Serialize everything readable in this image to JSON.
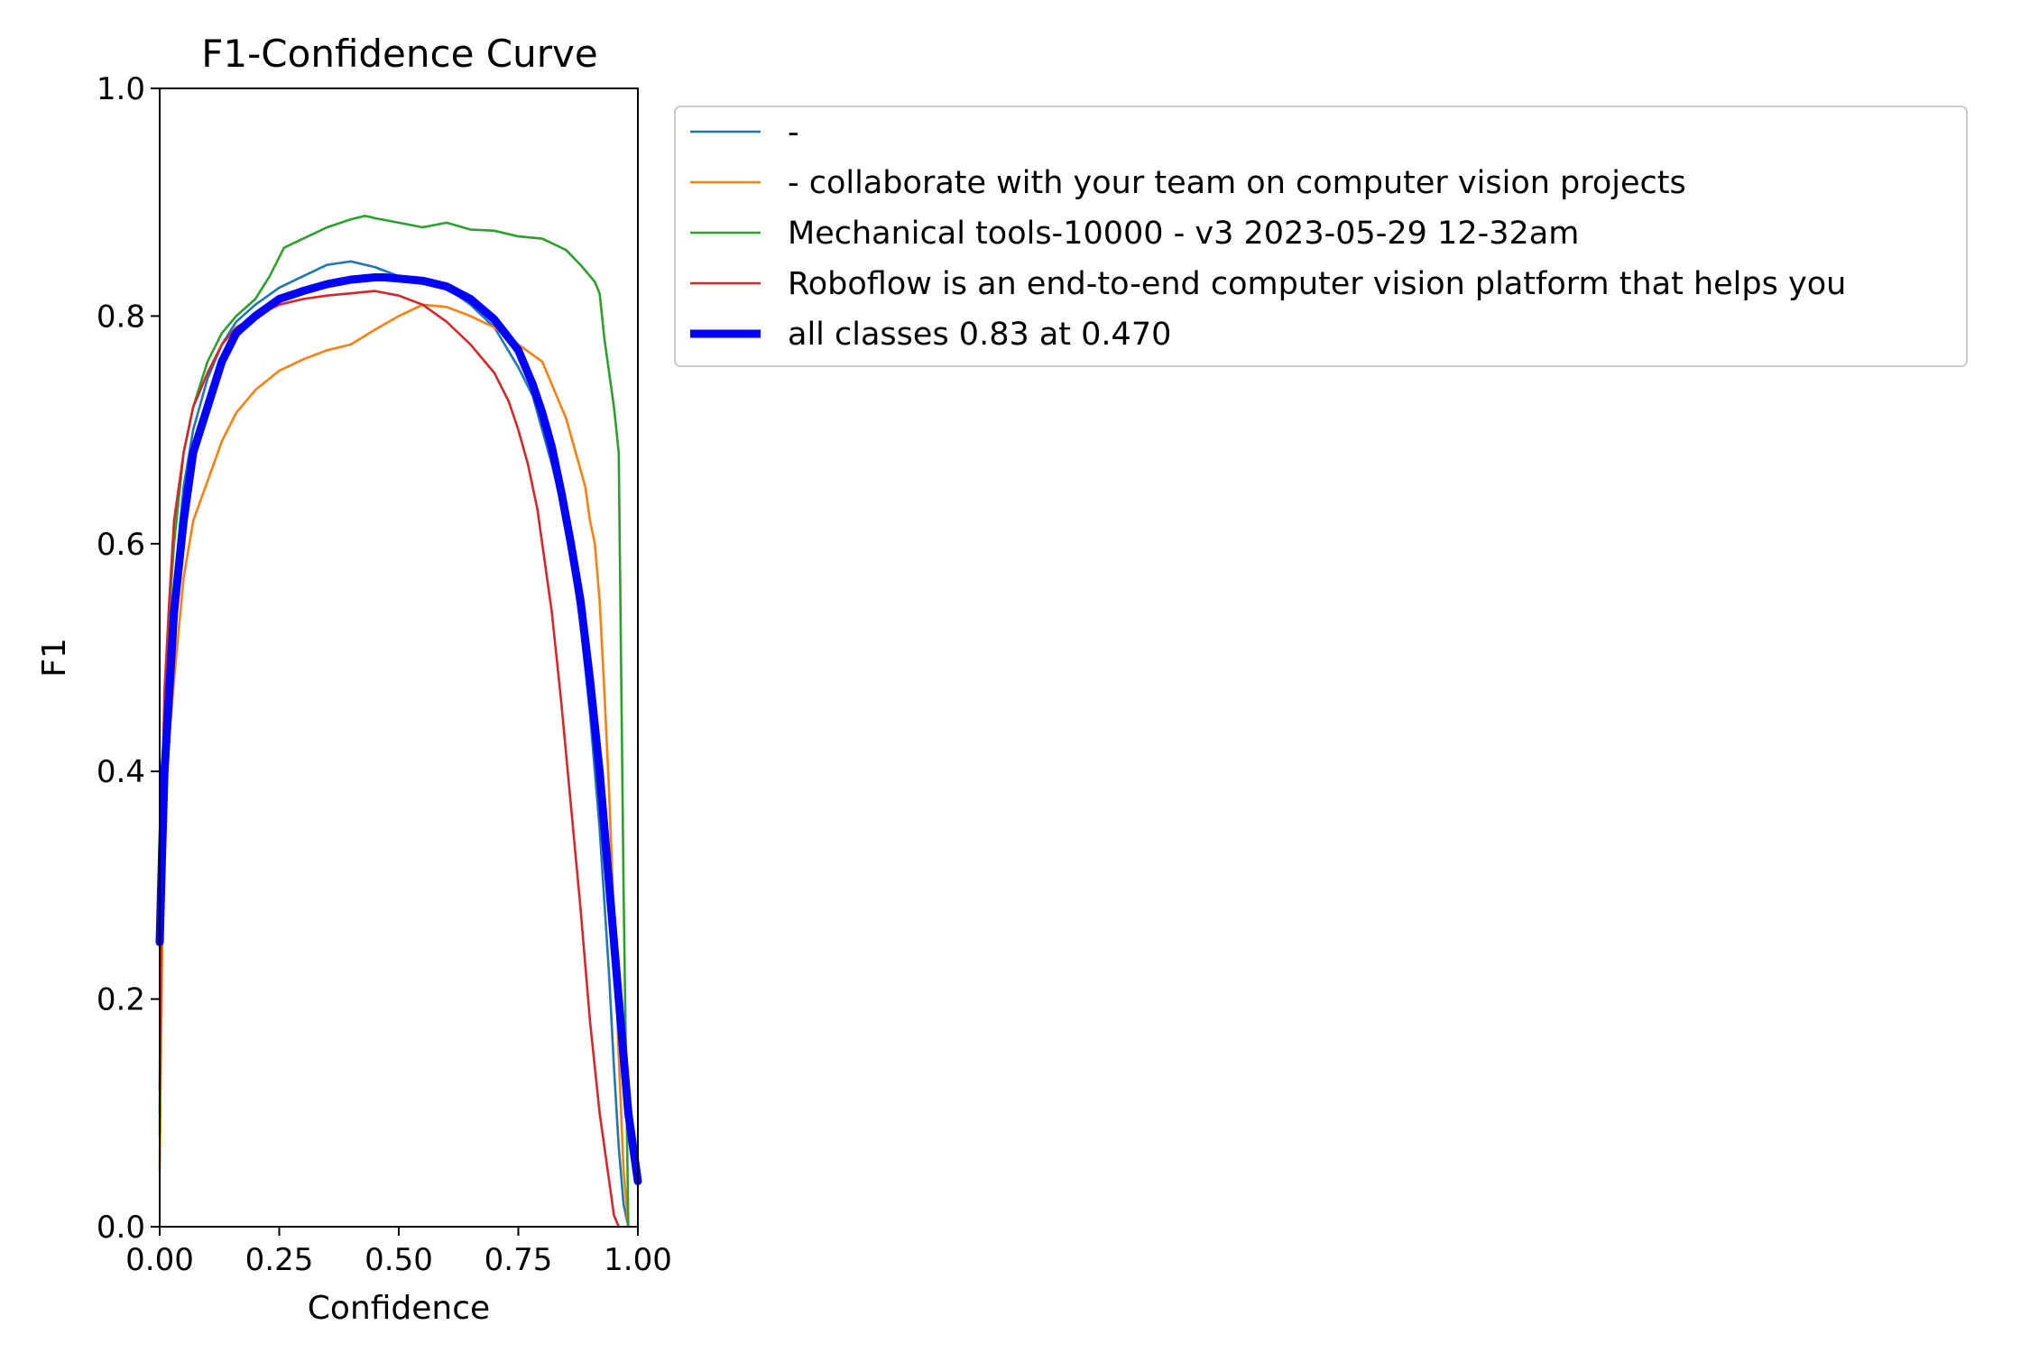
{
  "chart_data": {
    "type": "line",
    "title": "F1-Confidence Curve",
    "xlabel": "Confidence",
    "ylabel": "F1",
    "xlim": [
      0,
      1
    ],
    "ylim": [
      0,
      1
    ],
    "xticks": [
      "0.00",
      "0.25",
      "0.50",
      "0.75",
      "1.00"
    ],
    "yticks": [
      "0.0",
      "0.2",
      "0.4",
      "0.6",
      "0.8",
      "1.0"
    ],
    "grid": false,
    "legend_position": "outside upper right",
    "series": [
      {
        "name": "-",
        "color": "#1f77b4",
        "line_width": "thin",
        "points": [
          [
            0.0,
            0.1
          ],
          [
            0.005,
            0.33
          ],
          [
            0.01,
            0.42
          ],
          [
            0.02,
            0.5
          ],
          [
            0.03,
            0.56
          ],
          [
            0.05,
            0.65
          ],
          [
            0.07,
            0.7
          ],
          [
            0.1,
            0.745
          ],
          [
            0.13,
            0.775
          ],
          [
            0.16,
            0.795
          ],
          [
            0.2,
            0.81
          ],
          [
            0.25,
            0.825
          ],
          [
            0.3,
            0.835
          ],
          [
            0.35,
            0.845
          ],
          [
            0.4,
            0.848
          ],
          [
            0.45,
            0.843
          ],
          [
            0.5,
            0.835
          ],
          [
            0.55,
            0.83
          ],
          [
            0.6,
            0.825
          ],
          [
            0.65,
            0.81
          ],
          [
            0.7,
            0.79
          ],
          [
            0.75,
            0.755
          ],
          [
            0.78,
            0.73
          ],
          [
            0.8,
            0.7
          ],
          [
            0.82,
            0.67
          ],
          [
            0.84,
            0.635
          ],
          [
            0.86,
            0.59
          ],
          [
            0.88,
            0.53
          ],
          [
            0.9,
            0.45
          ],
          [
            0.92,
            0.35
          ],
          [
            0.94,
            0.22
          ],
          [
            0.95,
            0.14
          ],
          [
            0.96,
            0.07
          ],
          [
            0.97,
            0.02
          ],
          [
            0.98,
            0.0
          ]
        ]
      },
      {
        "name": "- collaborate with your team on computer vision projects",
        "color": "#ff7f0e",
        "line_width": "thin",
        "points": [
          [
            0.0,
            0.05
          ],
          [
            0.005,
            0.25
          ],
          [
            0.01,
            0.36
          ],
          [
            0.02,
            0.43
          ],
          [
            0.03,
            0.48
          ],
          [
            0.05,
            0.57
          ],
          [
            0.07,
            0.62
          ],
          [
            0.1,
            0.655
          ],
          [
            0.13,
            0.69
          ],
          [
            0.16,
            0.715
          ],
          [
            0.2,
            0.735
          ],
          [
            0.25,
            0.752
          ],
          [
            0.3,
            0.762
          ],
          [
            0.35,
            0.77
          ],
          [
            0.4,
            0.775
          ],
          [
            0.45,
            0.788
          ],
          [
            0.5,
            0.8
          ],
          [
            0.55,
            0.81
          ],
          [
            0.6,
            0.808
          ],
          [
            0.65,
            0.8
          ],
          [
            0.7,
            0.79
          ],
          [
            0.75,
            0.775
          ],
          [
            0.8,
            0.76
          ],
          [
            0.82,
            0.74
          ],
          [
            0.85,
            0.71
          ],
          [
            0.87,
            0.68
          ],
          [
            0.89,
            0.65
          ],
          [
            0.9,
            0.62
          ],
          [
            0.91,
            0.6
          ],
          [
            0.92,
            0.55
          ],
          [
            0.93,
            0.47
          ],
          [
            0.94,
            0.38
          ],
          [
            0.95,
            0.27
          ],
          [
            0.96,
            0.15
          ],
          [
            0.97,
            0.05
          ],
          [
            0.98,
            0.0
          ]
        ]
      },
      {
        "name": "Mechanical tools-10000 - v3 2023-05-29 12-32am",
        "color": "#2ca02c",
        "line_width": "thin",
        "points": [
          [
            0.0,
            0.08
          ],
          [
            0.005,
            0.35
          ],
          [
            0.01,
            0.45
          ],
          [
            0.02,
            0.54
          ],
          [
            0.03,
            0.6
          ],
          [
            0.05,
            0.68
          ],
          [
            0.07,
            0.72
          ],
          [
            0.1,
            0.76
          ],
          [
            0.13,
            0.785
          ],
          [
            0.16,
            0.8
          ],
          [
            0.2,
            0.815
          ],
          [
            0.23,
            0.835
          ],
          [
            0.26,
            0.86
          ],
          [
            0.3,
            0.868
          ],
          [
            0.35,
            0.878
          ],
          [
            0.4,
            0.885
          ],
          [
            0.43,
            0.888
          ],
          [
            0.45,
            0.886
          ],
          [
            0.5,
            0.882
          ],
          [
            0.55,
            0.878
          ],
          [
            0.6,
            0.882
          ],
          [
            0.65,
            0.876
          ],
          [
            0.7,
            0.875
          ],
          [
            0.75,
            0.87
          ],
          [
            0.8,
            0.868
          ],
          [
            0.85,
            0.858
          ],
          [
            0.88,
            0.845
          ],
          [
            0.9,
            0.835
          ],
          [
            0.91,
            0.83
          ],
          [
            0.92,
            0.82
          ],
          [
            0.93,
            0.78
          ],
          [
            0.94,
            0.75
          ],
          [
            0.95,
            0.72
          ],
          [
            0.96,
            0.68
          ],
          [
            0.97,
            0.3
          ],
          [
            0.98,
            0.0
          ]
        ]
      },
      {
        "name": "Roboflow is an end-to-end computer vision platform that helps you",
        "color": "#d62728",
        "line_width": "thin",
        "points": [
          [
            0.0,
            0.12
          ],
          [
            0.005,
            0.38
          ],
          [
            0.01,
            0.47
          ],
          [
            0.02,
            0.55
          ],
          [
            0.03,
            0.62
          ],
          [
            0.05,
            0.68
          ],
          [
            0.07,
            0.72
          ],
          [
            0.1,
            0.75
          ],
          [
            0.13,
            0.775
          ],
          [
            0.16,
            0.79
          ],
          [
            0.2,
            0.8
          ],
          [
            0.25,
            0.81
          ],
          [
            0.3,
            0.815
          ],
          [
            0.35,
            0.818
          ],
          [
            0.4,
            0.82
          ],
          [
            0.45,
            0.822
          ],
          [
            0.5,
            0.818
          ],
          [
            0.55,
            0.81
          ],
          [
            0.6,
            0.795
          ],
          [
            0.65,
            0.775
          ],
          [
            0.7,
            0.75
          ],
          [
            0.73,
            0.725
          ],
          [
            0.75,
            0.7
          ],
          [
            0.77,
            0.67
          ],
          [
            0.79,
            0.63
          ],
          [
            0.8,
            0.6
          ],
          [
            0.82,
            0.54
          ],
          [
            0.84,
            0.46
          ],
          [
            0.86,
            0.37
          ],
          [
            0.88,
            0.28
          ],
          [
            0.9,
            0.18
          ],
          [
            0.92,
            0.1
          ],
          [
            0.94,
            0.04
          ],
          [
            0.95,
            0.01
          ],
          [
            0.96,
            0.0
          ]
        ]
      },
      {
        "name": "all classes 0.83 at 0.470",
        "color": "#0000ff",
        "line_width": "thick",
        "points": [
          [
            0.0,
            0.25
          ],
          [
            0.005,
            0.33
          ],
          [
            0.01,
            0.4
          ],
          [
            0.02,
            0.47
          ],
          [
            0.03,
            0.54
          ],
          [
            0.05,
            0.62
          ],
          [
            0.07,
            0.68
          ],
          [
            0.1,
            0.72
          ],
          [
            0.13,
            0.76
          ],
          [
            0.16,
            0.785
          ],
          [
            0.2,
            0.8
          ],
          [
            0.25,
            0.815
          ],
          [
            0.3,
            0.822
          ],
          [
            0.35,
            0.828
          ],
          [
            0.4,
            0.832
          ],
          [
            0.45,
            0.834
          ],
          [
            0.47,
            0.834
          ],
          [
            0.5,
            0.833
          ],
          [
            0.55,
            0.831
          ],
          [
            0.6,
            0.826
          ],
          [
            0.65,
            0.815
          ],
          [
            0.7,
            0.797
          ],
          [
            0.75,
            0.77
          ],
          [
            0.78,
            0.74
          ],
          [
            0.8,
            0.715
          ],
          [
            0.82,
            0.685
          ],
          [
            0.84,
            0.645
          ],
          [
            0.86,
            0.6
          ],
          [
            0.88,
            0.55
          ],
          [
            0.9,
            0.48
          ],
          [
            0.92,
            0.4
          ],
          [
            0.94,
            0.3
          ],
          [
            0.96,
            0.2
          ],
          [
            0.98,
            0.1
          ],
          [
            1.0,
            0.04
          ]
        ]
      }
    ]
  }
}
